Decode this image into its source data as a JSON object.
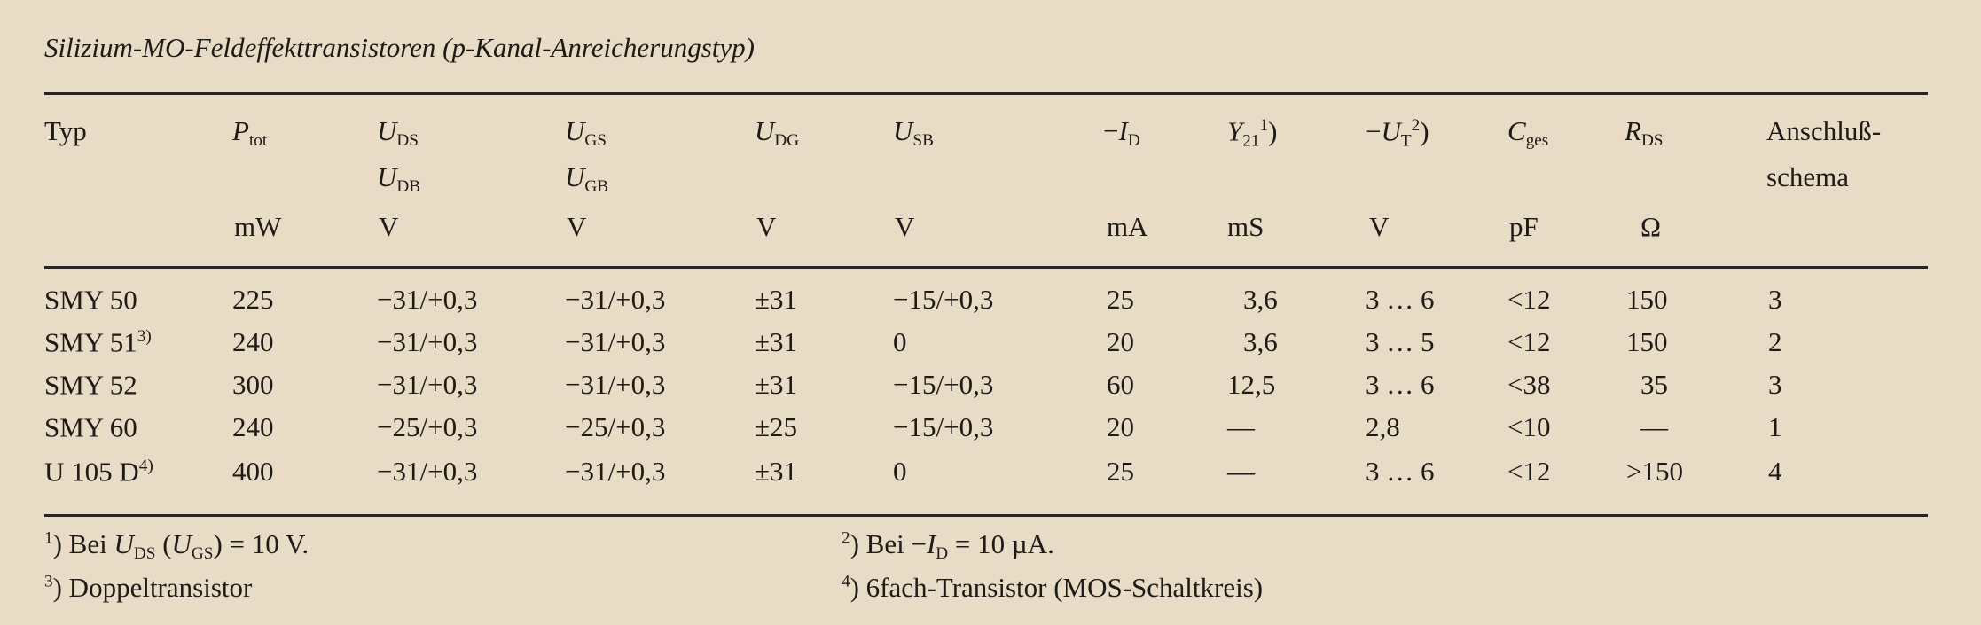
{
  "title": "Silizium-MO-Feldeffekttransistoren (p-Kanal-Anreicherungstyp)",
  "header": {
    "typ": "Typ",
    "ptot": {
      "sym": "P",
      "sub": "tot",
      "unit": "mW"
    },
    "uds": {
      "sym": "U",
      "sub": "DS",
      "sym2": "U",
      "sub2": "DB",
      "unit": "V"
    },
    "ugs": {
      "sym": "U",
      "sub": "GS",
      "sym2": "U",
      "sub2": "GB",
      "unit": "V"
    },
    "udg": {
      "sym": "U",
      "sub": "DG",
      "unit": "V"
    },
    "usb": {
      "sym": "U",
      "sub": "SB",
      "unit": "V"
    },
    "id": {
      "pre": "−",
      "sym": "I",
      "sub": "D",
      "unit": "mA"
    },
    "y21": {
      "sym": "Y",
      "sub": "21",
      "note": "1",
      "post": ")",
      "unit": "mS"
    },
    "ut": {
      "pre": "−",
      "sym": "U",
      "sub": "T",
      "note": "2",
      "post": ")",
      "unit": "V"
    },
    "cges": {
      "sym": "C",
      "sub": "ges",
      "unit": "pF"
    },
    "rds": {
      "sym": "R",
      "sub": "DS",
      "unit": "Ω"
    },
    "anschluss": {
      "line1": "Anschluß-",
      "line2": "schema"
    }
  },
  "rows": [
    {
      "typ": "SMY 50",
      "note": "",
      "ptot": "225",
      "uds": "−31/+0,3",
      "ugs": "−31/+0,3",
      "udg": "±31",
      "usb": "−15/+0,3",
      "id": "25",
      "y21": "3,6",
      "ut": "3 … 6",
      "cges": "<12",
      "rds": "150",
      "schema": "3"
    },
    {
      "typ": "SMY 51",
      "note": "3)",
      "ptot": "240",
      "uds": "−31/+0,3",
      "ugs": "−31/+0,3",
      "udg": "±31",
      "usb": "0",
      "id": "20",
      "y21": "3,6",
      "ut": "3 … 5",
      "cges": "<12",
      "rds": "150",
      "schema": "2"
    },
    {
      "typ": "SMY 52",
      "note": "",
      "ptot": "300",
      "uds": "−31/+0,3",
      "ugs": "−31/+0,3",
      "udg": "±31",
      "usb": "−15/+0,3",
      "id": "60",
      "y21": "12,5",
      "ut": "3 … 6",
      "cges": "<38",
      "rds": "35",
      "schema": "3"
    },
    {
      "typ": "SMY 60",
      "note": "",
      "ptot": "240",
      "uds": "−25/+0,3",
      "ugs": "−25/+0,3",
      "udg": "±25",
      "usb": "−15/+0,3",
      "id": "20",
      "y21": "—",
      "ut": "2,8",
      "cges": "<10",
      "rds": "—",
      "schema": "1"
    },
    {
      "typ": "U 105 D",
      "note": "4)",
      "ptot": "400",
      "uds": "−31/+0,3",
      "ugs": "−31/+0,3",
      "udg": "±31",
      "usb": "0",
      "id": "25",
      "y21": "—",
      "ut": "3 … 6",
      "cges": "<12",
      "rds": ">150",
      "schema": "4"
    }
  ],
  "footnotes": [
    {
      "mark": "1",
      "text_a": ") Bei ",
      "sym": "U",
      "sub": "DS",
      "mid": " (",
      "sym2": "U",
      "sub2": "GS",
      "text_b": ") = 10 V."
    },
    {
      "mark": "2",
      "text_a": ") Bei −",
      "sym": "I",
      "sub": "D",
      "text_b": " = 10 µA."
    },
    {
      "mark": "3",
      "text": ") Doppeltransistor"
    },
    {
      "mark": "4",
      "text": ") 6fach-Transistor (MOS-Schaltkreis)"
    }
  ]
}
